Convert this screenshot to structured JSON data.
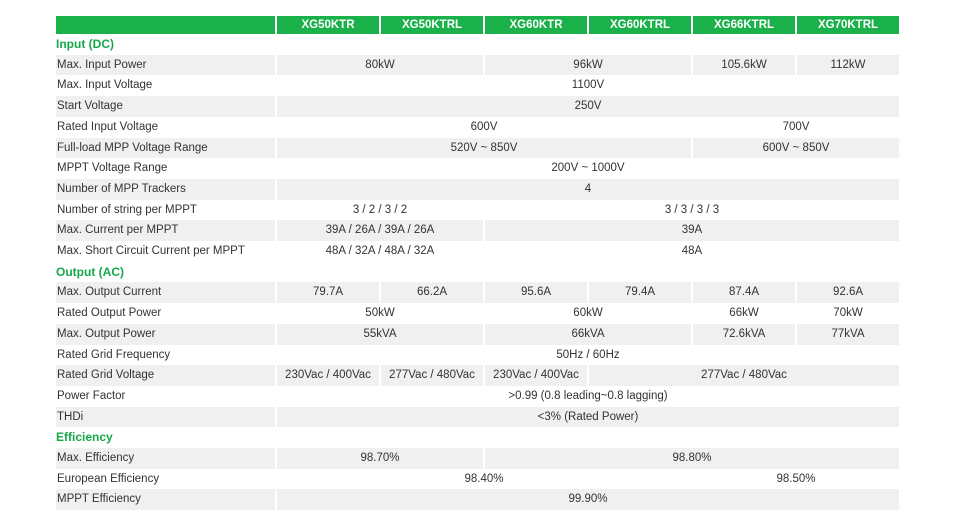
{
  "models": [
    "XG50KTR",
    "XG50KTRL",
    "XG60KTR",
    "XG60KTRL",
    "XG66KTRL",
    "XG70KTRL"
  ],
  "rows": [
    {
      "type": "section",
      "label": "Input (DC)"
    },
    {
      "type": "row",
      "label": "Max. Input Power",
      "cells": [
        {
          "v": "80kW",
          "span": 2
        },
        {
          "v": "96kW",
          "span": 2
        },
        {
          "v": "105.6kW",
          "span": 1
        },
        {
          "v": "112kW",
          "span": 1
        }
      ]
    },
    {
      "type": "row",
      "label": "Max. Input Voltage",
      "cells": [
        {
          "v": "1100V",
          "span": 6
        }
      ]
    },
    {
      "type": "row",
      "label": "Start Voltage",
      "cells": [
        {
          "v": "250V",
          "span": 6
        }
      ]
    },
    {
      "type": "row",
      "label": "Rated Input Voltage",
      "cells": [
        {
          "v": "600V",
          "span": 4
        },
        {
          "v": "700V",
          "span": 2
        }
      ]
    },
    {
      "type": "row",
      "label": "Full-load MPP Voltage Range",
      "cells": [
        {
          "v": "520V ~ 850V",
          "span": 4
        },
        {
          "v": "600V ~ 850V",
          "span": 2
        }
      ]
    },
    {
      "type": "row",
      "label": "MPPT Voltage Range",
      "cells": [
        {
          "v": "200V ~ 1000V",
          "span": 6
        }
      ]
    },
    {
      "type": "row",
      "label": "Number of MPP Trackers",
      "cells": [
        {
          "v": "4",
          "span": 6
        }
      ]
    },
    {
      "type": "row",
      "label": "Number of string per MPPT",
      "cells": [
        {
          "v": "3 / 2 / 3 / 2",
          "span": 2
        },
        {
          "v": "3 / 3 / 3 / 3",
          "span": 4
        }
      ]
    },
    {
      "type": "row",
      "label": "Max. Current per MPPT",
      "cells": [
        {
          "v": "39A / 26A / 39A / 26A",
          "span": 2
        },
        {
          "v": "39A",
          "span": 4
        }
      ]
    },
    {
      "type": "row",
      "label": "Max. Short Circuit Current per MPPT",
      "cells": [
        {
          "v": "48A / 32A / 48A / 32A",
          "span": 2
        },
        {
          "v": "48A",
          "span": 4
        }
      ]
    },
    {
      "type": "section",
      "label": "Output (AC)"
    },
    {
      "type": "row",
      "label": "Max. Output Current",
      "cells": [
        {
          "v": "79.7A",
          "span": 1
        },
        {
          "v": "66.2A",
          "span": 1
        },
        {
          "v": "95.6A",
          "span": 1
        },
        {
          "v": "79.4A",
          "span": 1
        },
        {
          "v": "87.4A",
          "span": 1
        },
        {
          "v": "92.6A",
          "span": 1
        }
      ]
    },
    {
      "type": "row",
      "label": "Rated Output Power",
      "cells": [
        {
          "v": "50kW",
          "span": 2
        },
        {
          "v": "60kW",
          "span": 2
        },
        {
          "v": "66kW",
          "span": 1
        },
        {
          "v": "70kW",
          "span": 1
        }
      ]
    },
    {
      "type": "row",
      "label": "Max. Output Power",
      "cells": [
        {
          "v": "55kVA",
          "span": 2
        },
        {
          "v": "66kVA",
          "span": 2
        },
        {
          "v": "72.6kVA",
          "span": 1
        },
        {
          "v": "77kVA",
          "span": 1
        }
      ]
    },
    {
      "type": "row",
      "label": "Rated Grid Frequency",
      "cells": [
        {
          "v": "50Hz / 60Hz",
          "span": 6
        }
      ]
    },
    {
      "type": "row",
      "label": "Rated Grid Voltage",
      "cells": [
        {
          "v": "230Vac / 400Vac",
          "span": 1
        },
        {
          "v": "277Vac / 480Vac",
          "span": 1
        },
        {
          "v": "230Vac / 400Vac",
          "span": 1
        },
        {
          "v": "277Vac / 480Vac",
          "span": 3
        }
      ]
    },
    {
      "type": "row",
      "label": "Power Factor",
      "cells": [
        {
          "v": ">0.99 (0.8 leading~0.8 lagging)",
          "span": 6
        }
      ]
    },
    {
      "type": "row",
      "label": "THDi",
      "cells": [
        {
          "v": "<3% (Rated Power)",
          "span": 6
        }
      ]
    },
    {
      "type": "section",
      "label": "Efficiency"
    },
    {
      "type": "row",
      "label": "Max. Efficiency",
      "cells": [
        {
          "v": "98.70%",
          "span": 2
        },
        {
          "v": "98.80%",
          "span": 4
        }
      ]
    },
    {
      "type": "row",
      "label": "European Efficiency",
      "cells": [
        {
          "v": "98.40%",
          "span": 4
        },
        {
          "v": "98.50%",
          "span": 2
        }
      ]
    },
    {
      "type": "row",
      "label": "MPPT Efficiency",
      "cells": [
        {
          "v": "99.90%",
          "span": 6
        }
      ]
    }
  ]
}
